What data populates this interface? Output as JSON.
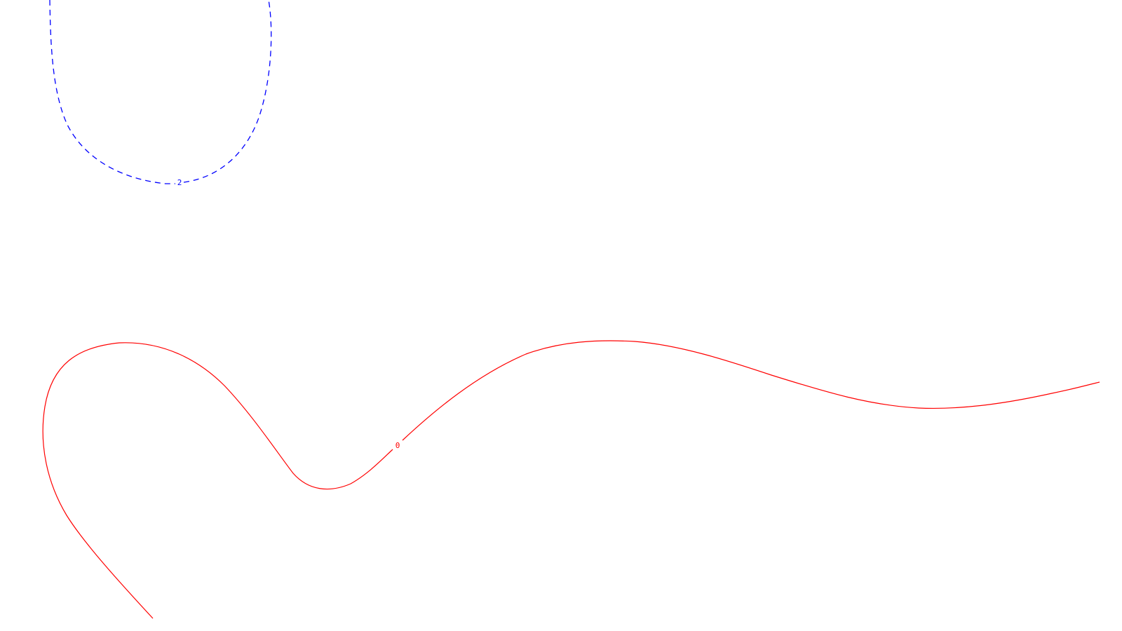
{
  "chart_data": {
    "type": "contour",
    "title": "",
    "xlabel": "",
    "ylabel": "",
    "grid": false,
    "legend": "none",
    "contours": [
      {
        "level": "2",
        "label": "2",
        "color": "#0000ff",
        "style": "dashed"
      },
      {
        "level": "0",
        "label": "0",
        "color": "#ff0000",
        "style": "solid"
      }
    ]
  }
}
